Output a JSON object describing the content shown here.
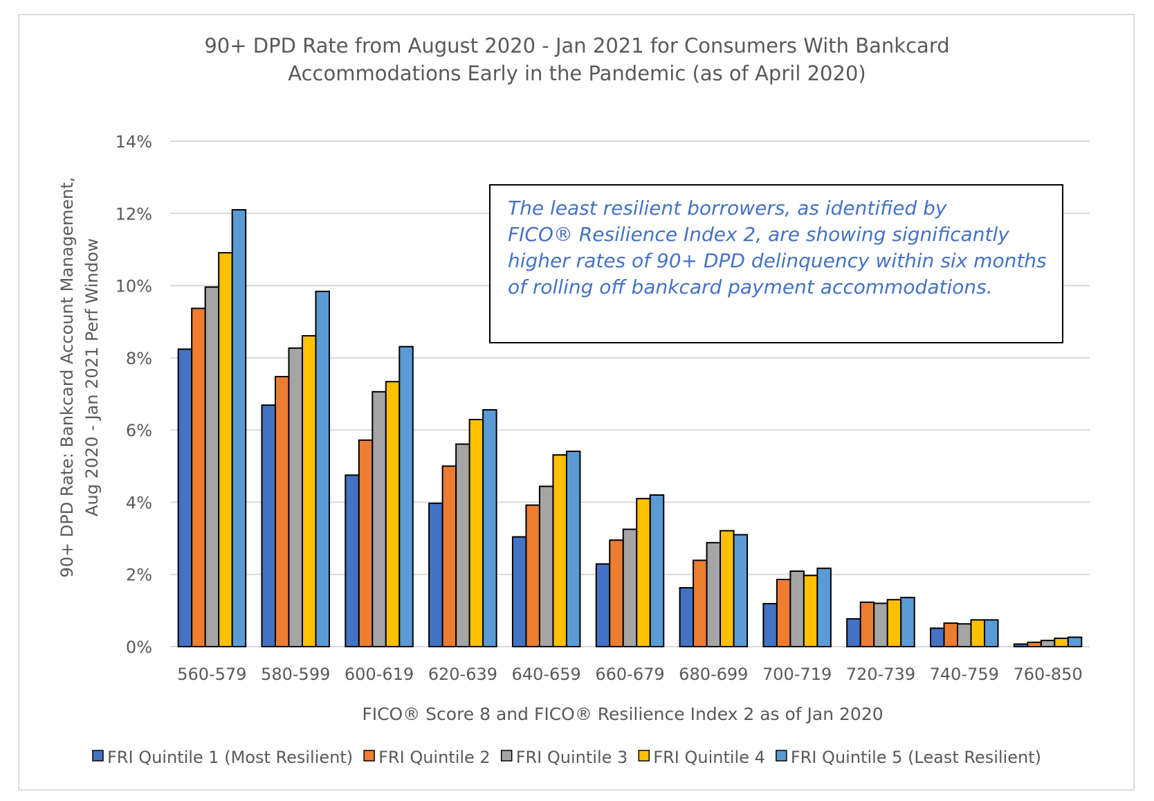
{
  "chart_data": {
    "type": "bar",
    "title_lines": [
      "90+ DPD Rate from August 2020 - Jan 2021 for Consumers With Bankcard",
      "Accommodations Early in the Pandemic (as of April 2020)"
    ],
    "ylabel_lines": [
      "90+ DPD Rate: Bankcard Account Management,",
      "Aug 2020 - Jan 2021 Perf Window"
    ],
    "xlabel": "FICO® Score 8 and FICO® Resilience Index 2 as of Jan 2020",
    "ylim": [
      0,
      14
    ],
    "yticks": [
      "0%",
      "2%",
      "4%",
      "6%",
      "8%",
      "10%",
      "12%",
      "14%"
    ],
    "grid": true,
    "legend_position": "bottom",
    "categories": [
      "560-579",
      "580-599",
      "600-619",
      "620-639",
      "640-659",
      "660-679",
      "680-699",
      "700-719",
      "720-739",
      "740-759",
      "760-850"
    ],
    "series": [
      {
        "name": "FRI Quintile 1 (Most Resilient)",
        "color": "#4472c4",
        "values": [
          8.24,
          6.69,
          4.75,
          3.97,
          3.04,
          2.29,
          1.63,
          1.19,
          0.77,
          0.51,
          0.07
        ]
      },
      {
        "name": "FRI Quintile 2",
        "color": "#ed7d31",
        "values": [
          9.37,
          7.48,
          5.72,
          5.0,
          3.92,
          2.95,
          2.39,
          1.86,
          1.23,
          0.65,
          0.12
        ]
      },
      {
        "name": "FRI Quintile 3",
        "color": "#a5a5a5",
        "values": [
          9.96,
          8.27,
          7.06,
          5.61,
          4.44,
          3.25,
          2.88,
          2.09,
          1.2,
          0.63,
          0.17
        ]
      },
      {
        "name": "FRI Quintile 4",
        "color": "#ffc000",
        "values": [
          10.91,
          8.61,
          7.34,
          6.29,
          5.31,
          4.1,
          3.21,
          1.97,
          1.3,
          0.74,
          0.23
        ]
      },
      {
        "name": "FRI Quintile 5 (Least Resilient)",
        "color": "#5b9bd5",
        "values": [
          12.1,
          9.84,
          8.31,
          6.56,
          5.41,
          4.2,
          3.1,
          2.17,
          1.36,
          0.74,
          0.26
        ]
      }
    ],
    "annotation_lines": [
      "The least resilient borrowers, as identified by",
      "FICO® Resilience Index 2, are showing significantly",
      "higher rates of 90+ DPD delinquency within six months",
      "of rolling off bankcard payment accommodations."
    ],
    "annotation_color": "#4472c4"
  }
}
